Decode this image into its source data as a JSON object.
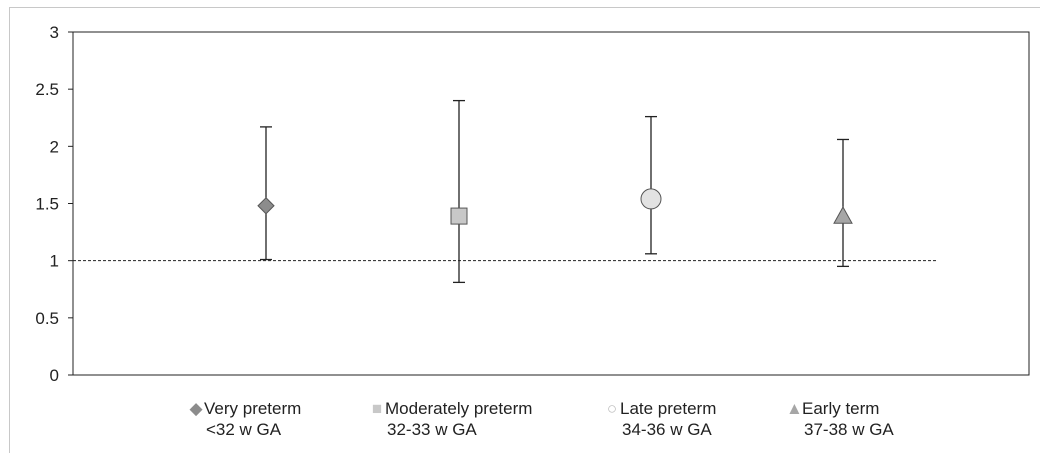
{
  "chart_data": {
    "type": "scatter",
    "title": "",
    "xlabel": "",
    "ylabel": "",
    "ylim": [
      0,
      3
    ],
    "yticks": [
      "0",
      "0.5",
      "1",
      "1.5",
      "2",
      "2.5",
      "3"
    ],
    "reference_line": 1,
    "grid": false,
    "legend_position": "bottom",
    "series": [
      {
        "name": "Very preterm",
        "name_line2": "<32 w GA",
        "marker": "diamond",
        "color": "#8c8c8c",
        "estimate": 1.48,
        "lower": 1.01,
        "upper": 2.17
      },
      {
        "name": "Moderately preterm",
        "name_line2": "32-33 w GA",
        "marker": "square",
        "color": "#c8c8c8",
        "estimate": 1.39,
        "lower": 0.81,
        "upper": 2.4
      },
      {
        "name": "Late preterm",
        "name_line2": "34-36 w GA",
        "marker": "circle",
        "color": "#e2e2e2",
        "estimate": 1.54,
        "lower": 1.06,
        "upper": 2.26
      },
      {
        "name": "Early term",
        "name_line2": "37-38 w GA",
        "marker": "triangle",
        "color": "#a6a6a6",
        "estimate": 1.39,
        "lower": 0.95,
        "upper": 2.06
      }
    ]
  }
}
